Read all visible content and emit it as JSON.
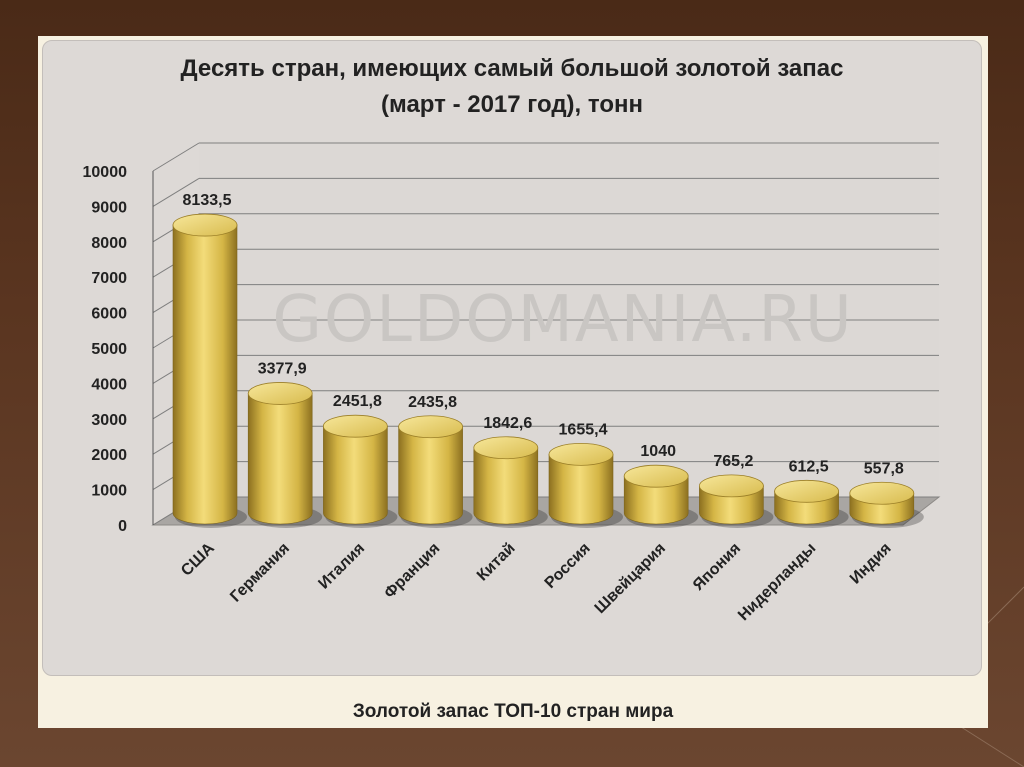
{
  "slide": {
    "caption": "Золотой запас ТОП-10 стран мира",
    "watermark": "GOLDOMANIA.RU"
  },
  "chart_data": {
    "type": "bar",
    "title": "Десять стран, имеющих самый большой золотой запас",
    "subtitle": "(март - 2017 год), тонн",
    "categories": [
      "США",
      "Германия",
      "Италия",
      "Франция",
      "Китай",
      "Россия",
      "Швейцария",
      "Япония",
      "Нидерланды",
      "Индия"
    ],
    "values": [
      8133.5,
      3377.9,
      2451.8,
      2435.8,
      1842.6,
      1655.4,
      1040,
      765.2,
      612.5,
      557.8
    ],
    "value_labels": [
      "8133,5",
      "3377,9",
      "2451,8",
      "2435,8",
      "1842,6",
      "1655,4",
      "1040",
      "765,2",
      "612,5",
      "557,8"
    ],
    "yticks": [
      0,
      1000,
      2000,
      3000,
      4000,
      5000,
      6000,
      7000,
      8000,
      9000,
      10000
    ],
    "ylim": [
      0,
      10000
    ],
    "xlabel": "",
    "ylabel": "",
    "grid": true,
    "legend": "none",
    "colors": {
      "bar_light": "#f3dc7a",
      "bar_mid": "#d4b545",
      "bar_dark": "#8c7020",
      "grid": "#7f7f7f"
    }
  }
}
